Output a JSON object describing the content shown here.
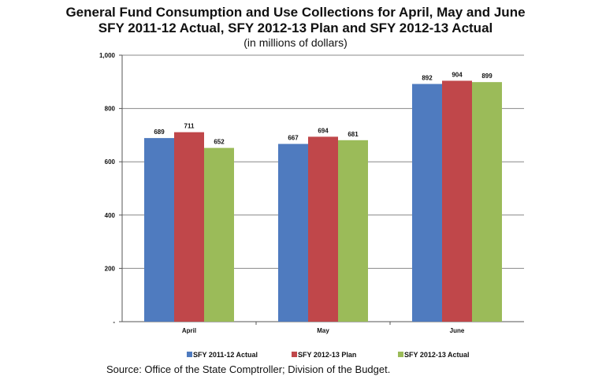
{
  "chart_data": {
    "type": "bar",
    "title": "General Fund Consumption and Use Collections for April, May and June",
    "subtitle": "SFY 2011-12 Actual, SFY 2012-13 Plan and SFY 2012-13 Actual",
    "unit_note": "(in millions of dollars)",
    "categories": [
      "April",
      "May",
      "June"
    ],
    "series": [
      {
        "name": "SFY 2011-12 Actual",
        "color": "#4f7bbf",
        "values": [
          689,
          667,
          892
        ]
      },
      {
        "name": "SFY 2012-13 Plan",
        "color": "#c0474a",
        "values": [
          711,
          694,
          904
        ]
      },
      {
        "name": "SFY 2012-13 Actual",
        "color": "#9bbb59",
        "values": [
          652,
          681,
          899
        ]
      }
    ],
    "ylim": [
      0,
      1000
    ],
    "yticks": [
      0,
      200,
      400,
      600,
      800,
      1000
    ],
    "ytick_labels": [
      "-",
      "200",
      "400",
      "600",
      "800",
      "1,000"
    ],
    "grid": true,
    "legend": "bottom",
    "source": "Source: Office of the State Comptroller; Division of the Budget."
  }
}
